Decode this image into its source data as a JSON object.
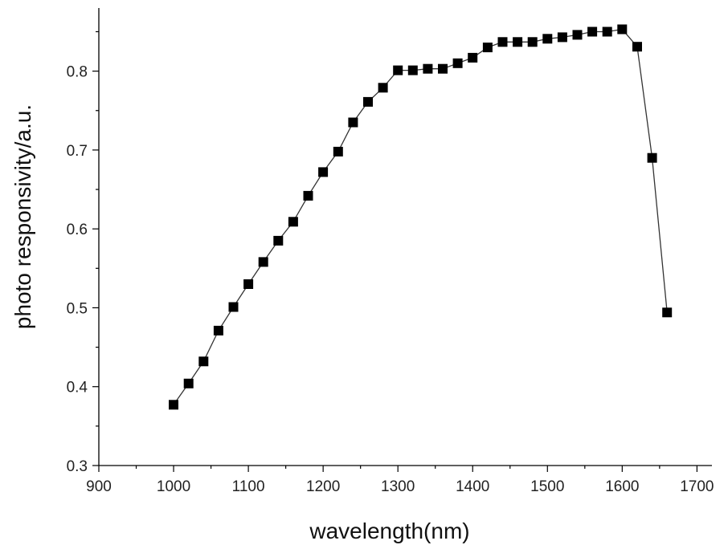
{
  "chart_data": {
    "type": "line",
    "xlabel": "wavelength(nm)",
    "ylabel": "photo responsivity/a.u.",
    "xlim": [
      900,
      1720
    ],
    "ylim": [
      0.3,
      0.88
    ],
    "x_ticks": [
      900,
      1000,
      1100,
      1200,
      1300,
      1400,
      1500,
      1600,
      1700
    ],
    "y_ticks": [
      0.3,
      0.4,
      0.5,
      0.6,
      0.7,
      0.8
    ],
    "marker": "square",
    "grid": false,
    "legend": "none",
    "series": [
      {
        "x": [
          1000,
          1020,
          1040,
          1060,
          1080,
          1100,
          1120,
          1140,
          1160,
          1180,
          1200,
          1220,
          1240,
          1260,
          1280,
          1300,
          1320,
          1340,
          1360,
          1380,
          1400,
          1420,
          1440,
          1460,
          1480,
          1500,
          1520,
          1540,
          1560,
          1580,
          1600,
          1620,
          1640,
          1660
        ],
        "y": [
          0.377,
          0.404,
          0.432,
          0.471,
          0.501,
          0.53,
          0.558,
          0.585,
          0.609,
          0.642,
          0.672,
          0.698,
          0.735,
          0.761,
          0.779,
          0.801,
          0.801,
          0.803,
          0.803,
          0.81,
          0.817,
          0.83,
          0.837,
          0.837,
          0.837,
          0.841,
          0.843,
          0.846,
          0.85,
          0.85,
          0.853,
          0.831,
          0.69,
          0.494
        ]
      }
    ]
  }
}
